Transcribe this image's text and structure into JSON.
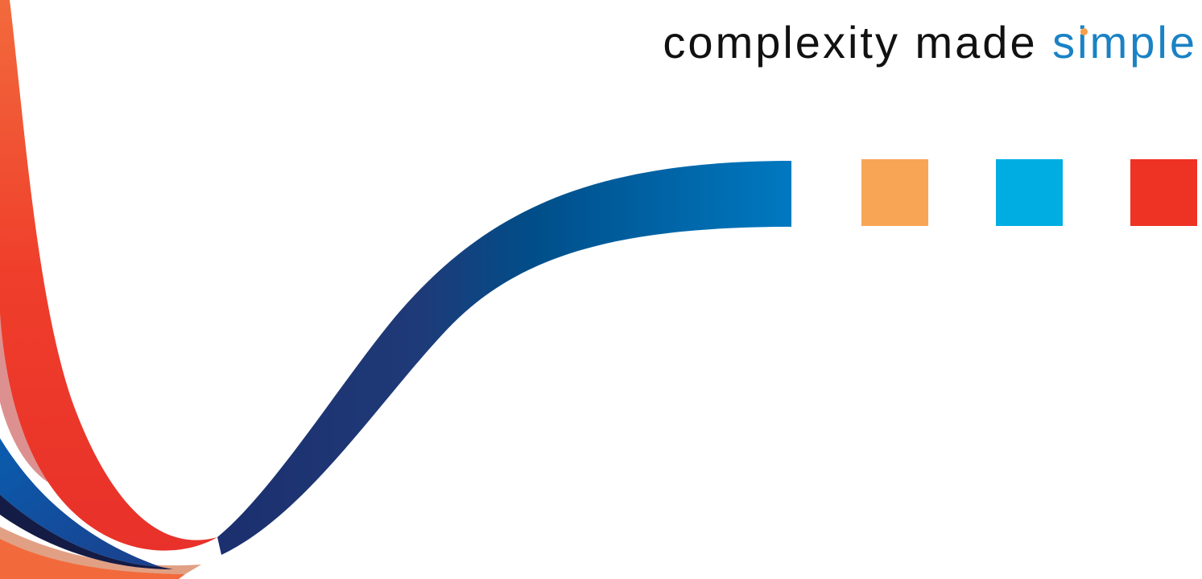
{
  "tagline": {
    "lead": "complexity made ",
    "accent_prefix": "s",
    "accent_letter": "i",
    "accent_suffix": "mple"
  },
  "colors": {
    "text": "#111111",
    "accent": "#1a82c5",
    "i_dot": "#f6a04d",
    "square_orange": "#f8a655",
    "square_cyan": "#00ade3",
    "square_red": "#ee3224",
    "ribbon_blue_dark": "#1e3775",
    "ribbon_blue_light": "#0078bf",
    "ribbon_red": "#ee3224",
    "ribbon_orange": "#f26a3c"
  },
  "squares": [
    {
      "name": "orange-square",
      "color": "#f8a655"
    },
    {
      "name": "cyan-square",
      "color": "#00ade3"
    },
    {
      "name": "red-square",
      "color": "#ee3224"
    }
  ]
}
